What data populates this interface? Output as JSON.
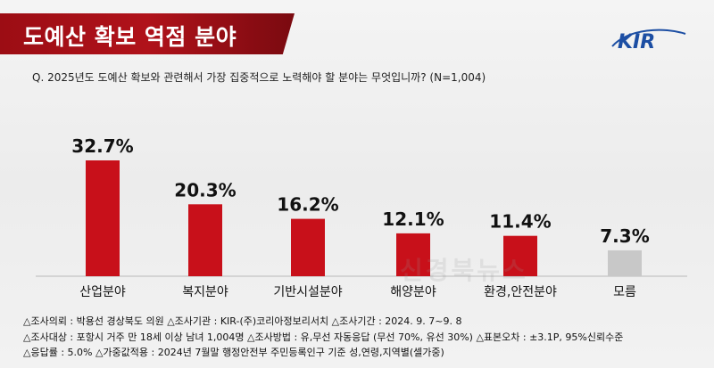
{
  "header": {
    "title": "도예산 확보 역점 분야",
    "logo_text": "KIR"
  },
  "question": "Q. 2025년도 도예산 확보와 관련해서 가장 집중적으로 노력해야 할 분야는 무엇입니까? (N=1,004)",
  "watermark": "신경북뉴스",
  "colors": {
    "bar_red": "#c8101a",
    "bar_gray": "#c8c8c8",
    "title_bg": "#a50f16",
    "logo_blue": "#1c4ea3"
  },
  "chart_data": {
    "type": "bar",
    "categories": [
      "산업분야",
      "복지분야",
      "기반시설분야",
      "해양분야",
      "환경,안전분야",
      "모름"
    ],
    "values": [
      32.7,
      20.3,
      16.2,
      12.1,
      11.4,
      7.3
    ],
    "value_labels": [
      "32.7%",
      "20.3%",
      "16.2%",
      "12.1%",
      "11.4%",
      "7.3%"
    ],
    "bar_colors": [
      "#c8101a",
      "#c8101a",
      "#c8101a",
      "#c8101a",
      "#c8101a",
      "#c8c8c8"
    ],
    "ylim": [
      0,
      35
    ],
    "grid": false,
    "legend": "none"
  },
  "footer": {
    "line1": "△조사의뢰 : 박용선 경상북도 의원    △조사기관 : KIR-(주)코리아정보리서치    △조사기간 : 2024. 9. 7~9. 8",
    "line2": "△조사대상 : 포항시 거주 만 18세 이상 남녀 1,004명    △조사방법 : 유,무선 자동응답 (무선 70%, 유선 30%)    △표본오차 : ±3.1P, 95%신뢰수준",
    "line3": "△응답률 : 5.0%    △가중값적용 : 2024년 7월말 행정안전부 주민등록인구 기준 성,연령,지역별(셀가중)"
  }
}
